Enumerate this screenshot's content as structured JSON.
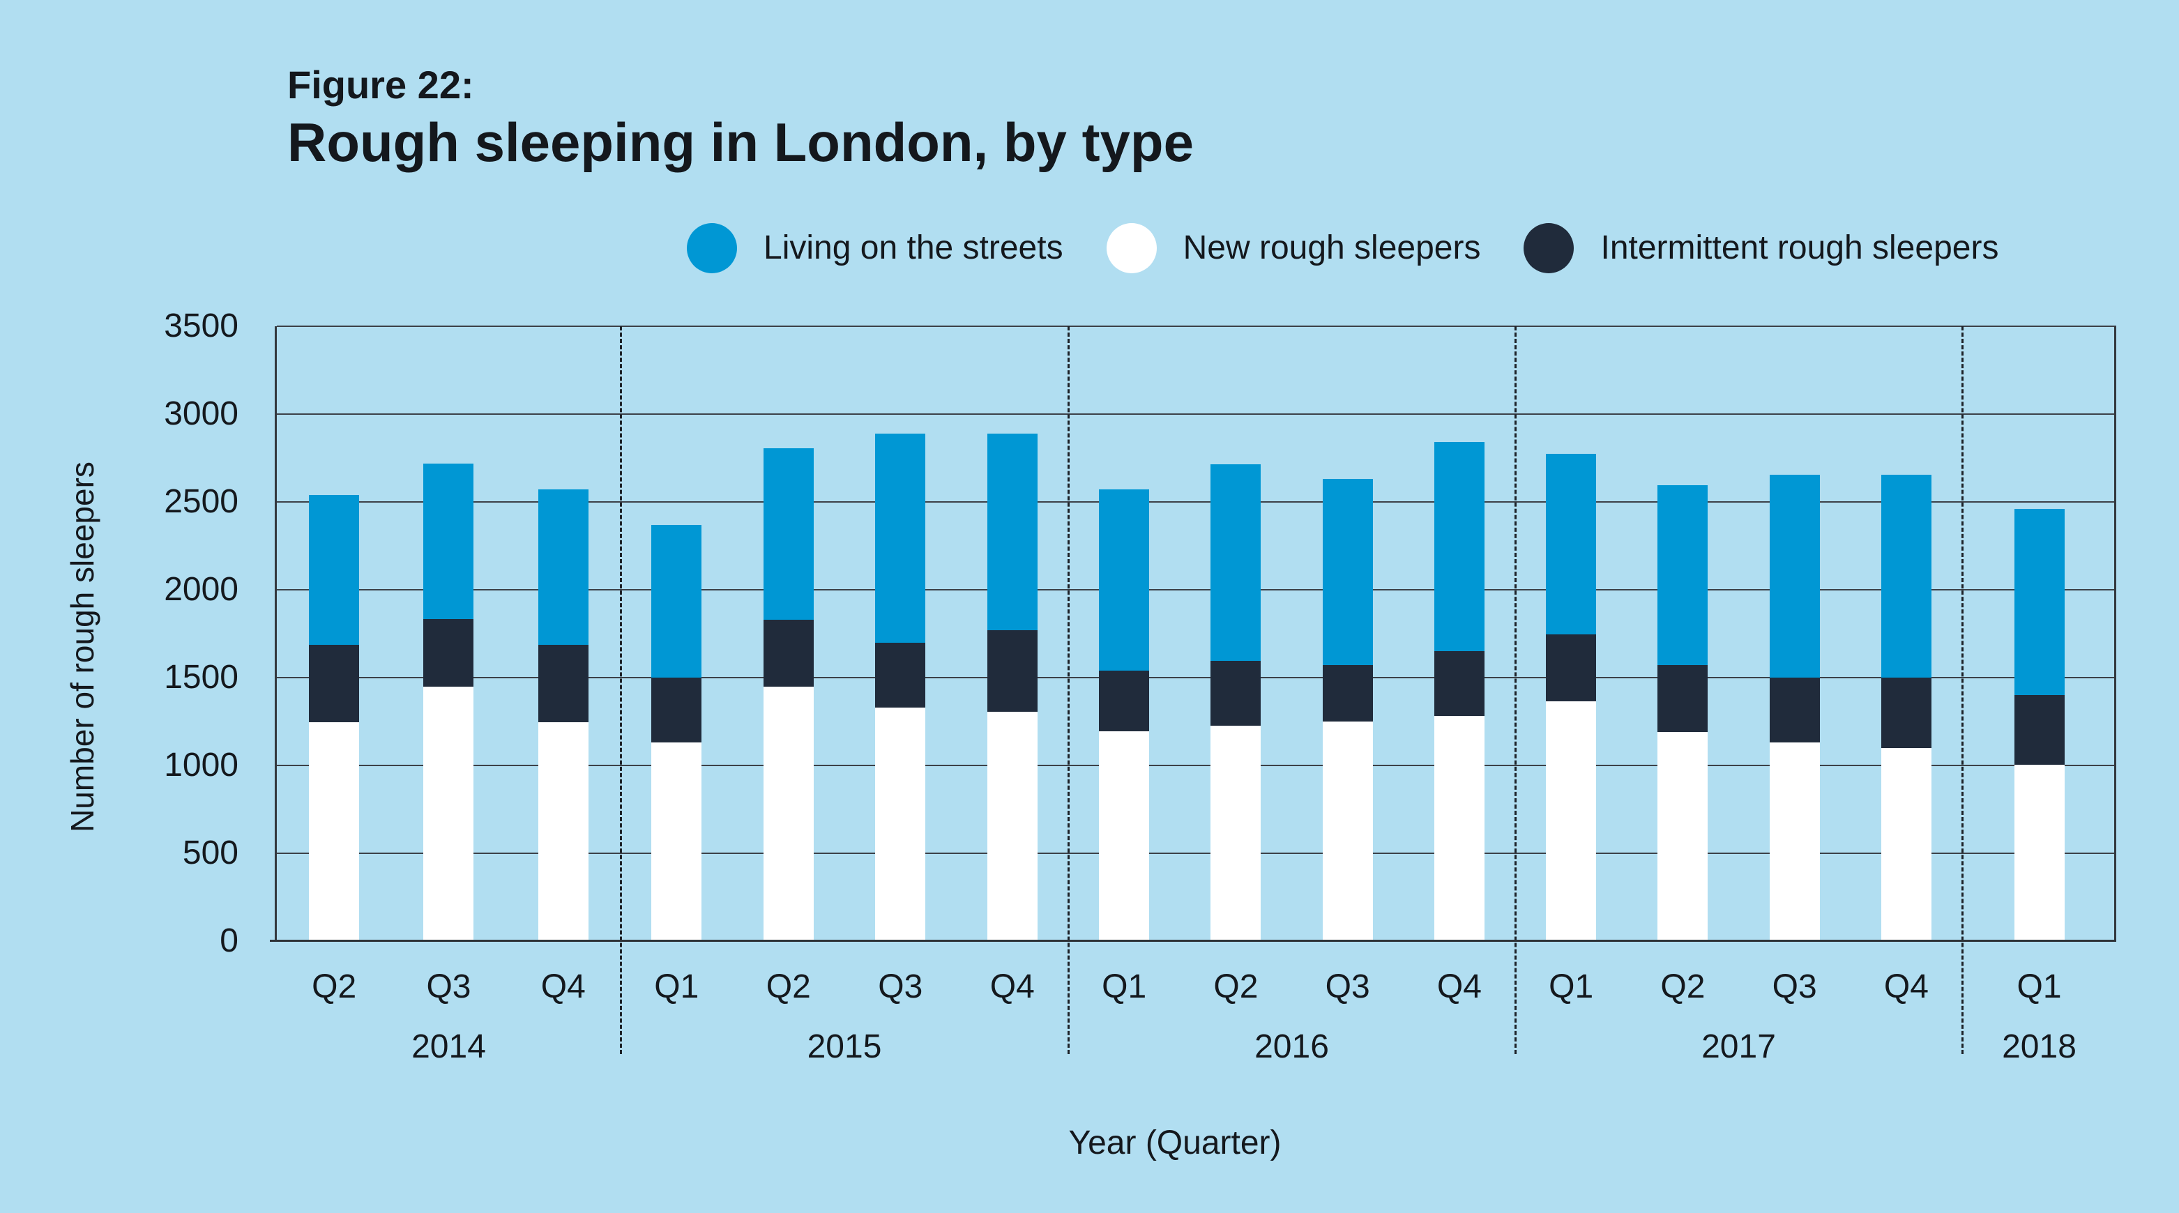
{
  "figure_label": "Figure 22:",
  "title": "Rough sleeping in London, by type",
  "colors": {
    "background": "#B1DEF1",
    "living": "#0097D4",
    "new": "#FFFFFF",
    "intermittent": "#202B3B",
    "gridline": "#3c4148",
    "text": "#14181d"
  },
  "legend": [
    {
      "label": "Living on the streets",
      "color": "#0097D4"
    },
    {
      "label": "New rough sleepers",
      "color": "#FFFFFF"
    },
    {
      "label": "Intermittent rough sleepers",
      "color": "#202B3B"
    }
  ],
  "y_axis": {
    "title": "Number of rough sleepers",
    "ticks": [
      3500,
      3000,
      2500,
      2000,
      1500,
      1000,
      500,
      0
    ]
  },
  "x_axis": {
    "title": "Year (Quarter)"
  },
  "chart_data": {
    "type": "bar",
    "stacked": true,
    "title": "Rough sleeping in London, by type",
    "xlabel": "Year (Quarter)",
    "ylabel": "Number of rough sleepers",
    "ylim": [
      0,
      3500
    ],
    "ytick_step": 500,
    "grid": true,
    "legend_position": "top",
    "groups": [
      {
        "year": "2014",
        "quarters": [
          "Q2",
          "Q3",
          "Q4"
        ]
      },
      {
        "year": "2015",
        "quarters": [
          "Q1",
          "Q2",
          "Q3",
          "Q4"
        ]
      },
      {
        "year": "2016",
        "quarters": [
          "Q1",
          "Q2",
          "Q3",
          "Q4"
        ]
      },
      {
        "year": "2017",
        "quarters": [
          "Q1",
          "Q2",
          "Q3",
          "Q4"
        ]
      },
      {
        "year": "2018",
        "quarters": [
          "Q1"
        ]
      }
    ],
    "categories": [
      "2014 Q2",
      "2014 Q3",
      "2014 Q4",
      "2015 Q1",
      "2015 Q2",
      "2015 Q3",
      "2015 Q4",
      "2016 Q1",
      "2016 Q2",
      "2016 Q3",
      "2016 Q4",
      "2017 Q1",
      "2017 Q2",
      "2017 Q3",
      "2017 Q4",
      "2018 Q1"
    ],
    "stack_order_bottom_to_top": [
      "New rough sleepers",
      "Intermittent rough sleepers",
      "Living on the streets"
    ],
    "series": [
      {
        "name": "New rough sleepers",
        "color": "#FFFFFF",
        "values": [
          1245,
          1450,
          1245,
          1130,
          1450,
          1330,
          1305,
          1195,
          1225,
          1250,
          1280,
          1365,
          1190,
          1130,
          1100,
          1005
        ]
      },
      {
        "name": "Intermittent rough sleepers",
        "color": "#202B3B",
        "values": [
          440,
          385,
          440,
          370,
          380,
          370,
          465,
          345,
          370,
          320,
          370,
          380,
          380,
          370,
          400,
          395
        ]
      },
      {
        "name": "Living on the streets",
        "color": "#0097D4",
        "values": [
          855,
          885,
          885,
          870,
          975,
          1190,
          1120,
          1030,
          1120,
          1060,
          1190,
          1030,
          1025,
          1155,
          1155,
          1060
        ]
      }
    ],
    "totals": [
      2540,
      2720,
      2570,
      2370,
      2805,
      2890,
      2890,
      2570,
      2715,
      2630,
      2840,
      2775,
      2595,
      2655,
      2655,
      2460
    ]
  }
}
